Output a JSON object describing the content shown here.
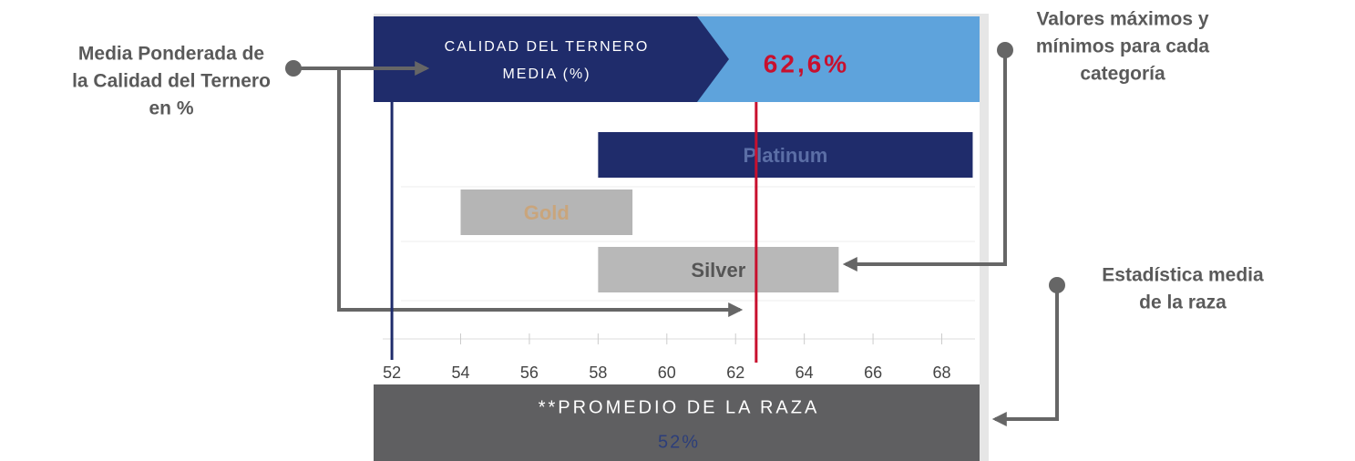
{
  "chart_data": {
    "type": "range_bar",
    "header": {
      "title_lines": [
        "CALIDAD DEL TERNERO",
        "MEDIA (%)"
      ]
    },
    "weighted_mean": 62.6,
    "weighted_mean_label": "62,6%",
    "breed_average": 52,
    "breed_average_label": "52%",
    "footer": "**PROMEDIO DE LA RAZA",
    "categories": [
      "Platinum",
      "Gold",
      "Silver"
    ],
    "low": [
      58,
      54,
      58
    ],
    "high": [
      68.9,
      59,
      65
    ],
    "colors": [
      "#1f2c6b",
      "#b5b5b5",
      "#b8b8b8"
    ],
    "label_colors": [
      "#5b6ea6",
      "#c9a57c",
      "#555555"
    ],
    "xlim": [
      51.6,
      69.1
    ],
    "xticks": [
      52,
      54,
      56,
      58,
      60,
      62,
      64,
      66,
      68
    ],
    "mean_color": "#c8102e",
    "average_color": "#1f2c6b",
    "annotations": [
      {
        "lines": [
          "Media Ponderada de",
          "la Calidad del Ternero",
          "en %"
        ]
      },
      {
        "lines": [
          "Valores máximos y",
          "mínimos para cada",
          "categoría"
        ]
      },
      {
        "lines": [
          "Estadística media",
          "de la raza"
        ]
      }
    ]
  }
}
